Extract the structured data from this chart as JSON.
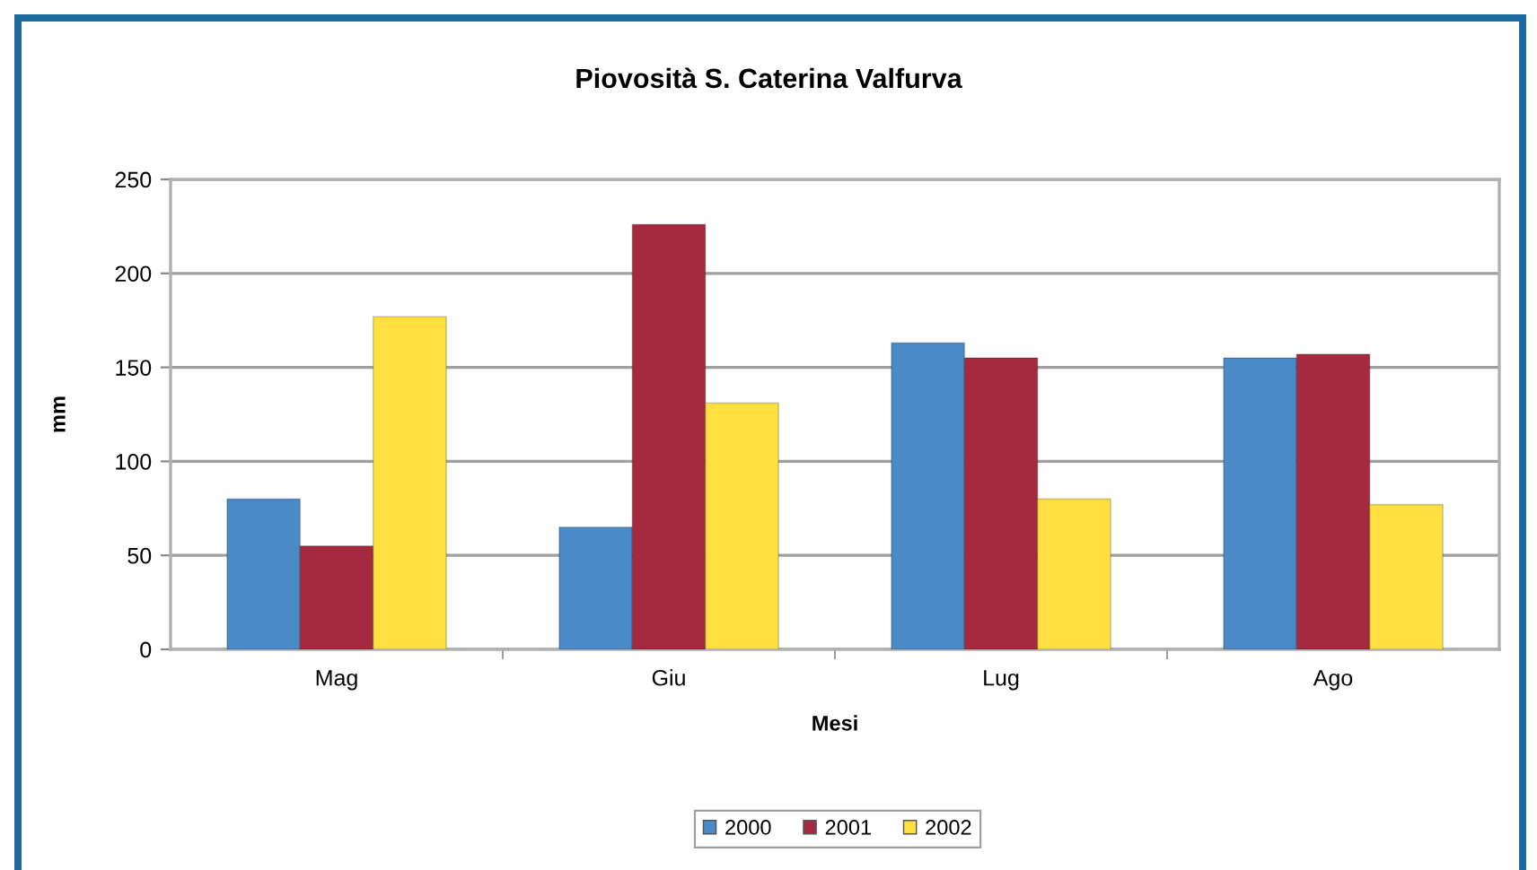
{
  "chart_data": {
    "type": "bar",
    "title": "Piovosità S. Caterina Valfurva",
    "xlabel": "Mesi",
    "ylabel": "mm",
    "categories": [
      "Mag",
      "Giu",
      "Lug",
      "Ago"
    ],
    "series": [
      {
        "name": "2000",
        "color": "#4a8ac8",
        "values": [
          80,
          65,
          163,
          155
        ]
      },
      {
        "name": "2001",
        "color": "#a52a3f",
        "values": [
          55,
          226,
          155,
          157
        ]
      },
      {
        "name": "2002",
        "color": "#ffe040",
        "values": [
          177,
          131,
          80,
          77
        ]
      }
    ],
    "ylim": [
      0,
      250
    ],
    "yticks": [
      0,
      50,
      100,
      150,
      200,
      250
    ],
    "grid": "y",
    "legend": "bottom"
  }
}
